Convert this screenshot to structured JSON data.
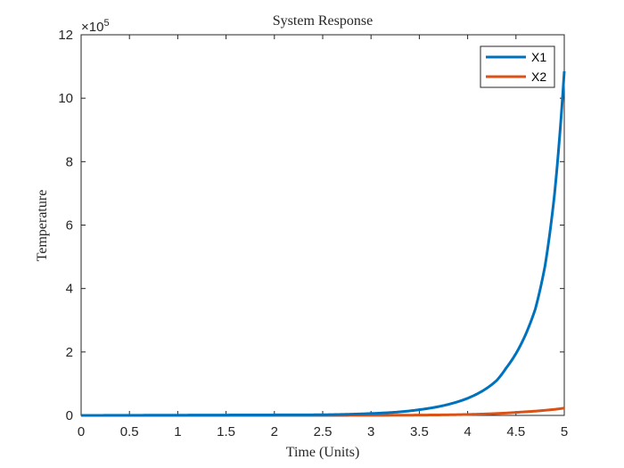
{
  "chart_data": {
    "type": "line",
    "title": "System Response",
    "xlabel": "Time (Units)",
    "ylabel": "Temperature",
    "xlim": [
      0,
      5
    ],
    "ylim": [
      0,
      1200000
    ],
    "y_exponent": {
      "prefix": "×10",
      "power": "5"
    },
    "x_ticks": [
      "0",
      "0.5",
      "1",
      "1.5",
      "2",
      "2.5",
      "3",
      "3.5",
      "4",
      "4.5",
      "5"
    ],
    "y_ticks": [
      "0",
      "2",
      "4",
      "6",
      "8",
      "10",
      "12"
    ],
    "grid": false,
    "legend": {
      "placement": "top-right"
    },
    "x": [
      0,
      2.5,
      3,
      3.25,
      3.5,
      3.75,
      4,
      4.1,
      4.2,
      4.3,
      4.4,
      4.5,
      4.6,
      4.7,
      4.8,
      4.9,
      5
    ],
    "series": [
      {
        "name": "X1",
        "color": "#0072BD",
        "values": [
          0,
          2000,
          6000,
          10000,
          18000,
          31000,
          54000,
          68000,
          86000,
          110000,
          150000,
          195000,
          255000,
          335000,
          470000,
          700000,
          1085000
        ]
      },
      {
        "name": "X2",
        "color": "#D95319",
        "values": [
          0,
          100,
          300,
          600,
          1000,
          1700,
          3000,
          3800,
          4800,
          6000,
          7500,
          9500,
          11500,
          13500,
          16000,
          19000,
          23000
        ]
      }
    ]
  }
}
